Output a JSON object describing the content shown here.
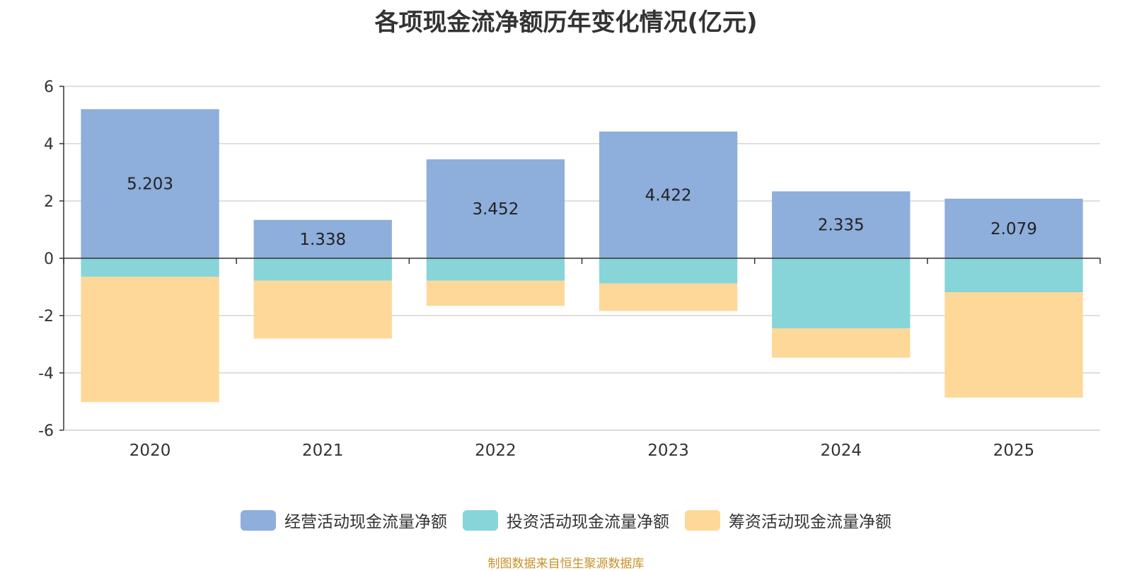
{
  "chart_data": {
    "type": "bar",
    "stacked": true,
    "title": "各项现金流净额历年变化情况(亿元)",
    "categories": [
      "2020",
      "2021",
      "2022",
      "2023",
      "2024",
      "2025"
    ],
    "ylim": [
      -6,
      6
    ],
    "yticks": [
      6,
      4,
      2,
      0,
      -2,
      -4,
      -6
    ],
    "grid": true,
    "legend_position": "bottom",
    "series": [
      {
        "name": "经营活动现金流量净额",
        "color": "#8eaedb",
        "values": [
          5.203,
          1.338,
          3.452,
          4.422,
          2.335,
          2.079
        ],
        "labels": [
          "5.203",
          "1.338",
          "3.452",
          "4.422",
          "2.335",
          "2.079"
        ]
      },
      {
        "name": "投资活动现金流量净额",
        "color": "#87d5d8",
        "values": [
          -0.65,
          -0.78,
          -0.78,
          -0.88,
          -2.45,
          -1.19
        ]
      },
      {
        "name": "筹资活动现金流量净额",
        "color": "#fed898",
        "values": [
          -4.37,
          -2.02,
          -0.88,
          -0.96,
          -1.02,
          -3.67
        ]
      }
    ],
    "source_note": "制图数据来自恒生聚源数据库"
  }
}
